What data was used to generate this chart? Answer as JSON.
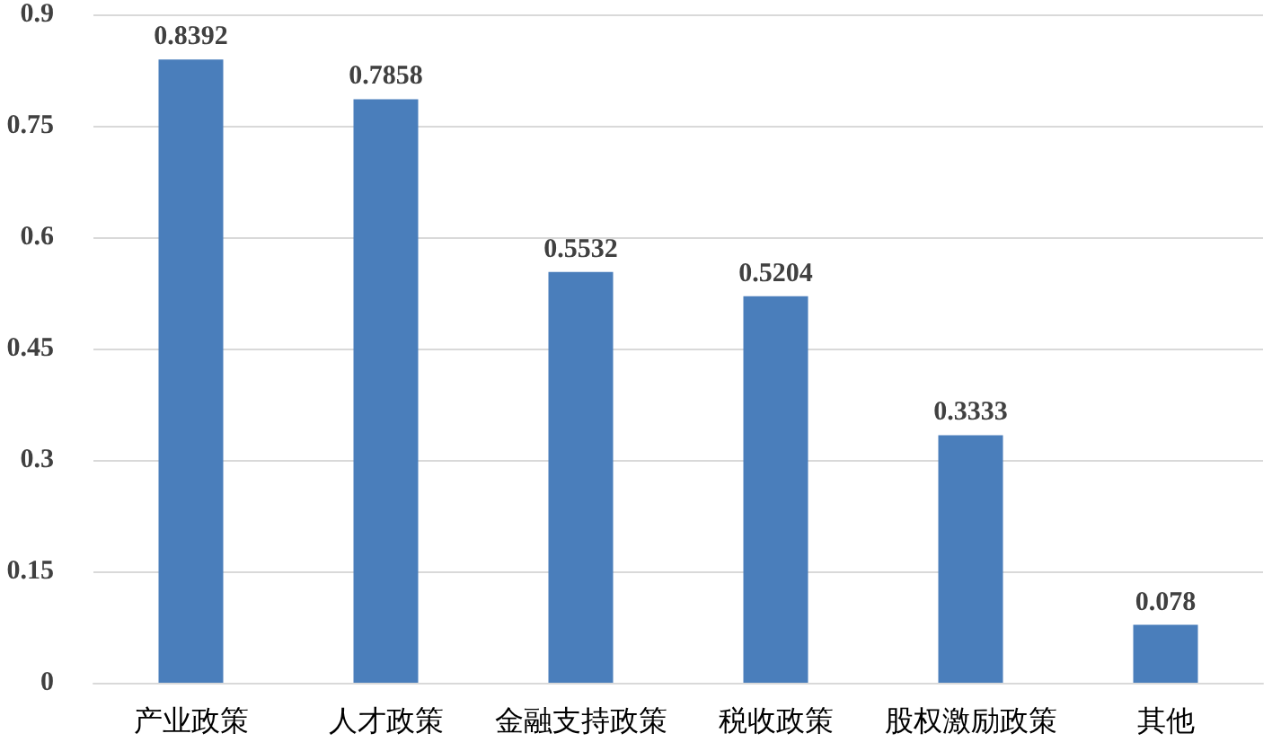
{
  "chart_data": {
    "type": "bar",
    "categories": [
      "产业政策",
      "人才政策",
      "金融支持政策",
      "税收政策",
      "股权激励政策",
      "其他"
    ],
    "values": [
      0.8392,
      0.7858,
      0.5532,
      0.5204,
      0.3333,
      0.078
    ],
    "color": "#4a7ebb",
    "ylim": [
      0,
      0.9
    ],
    "yticks": [
      0,
      0.15,
      0.3,
      0.45,
      0.6,
      0.75,
      0.9
    ],
    "grid": "y",
    "data_labels": true
  }
}
